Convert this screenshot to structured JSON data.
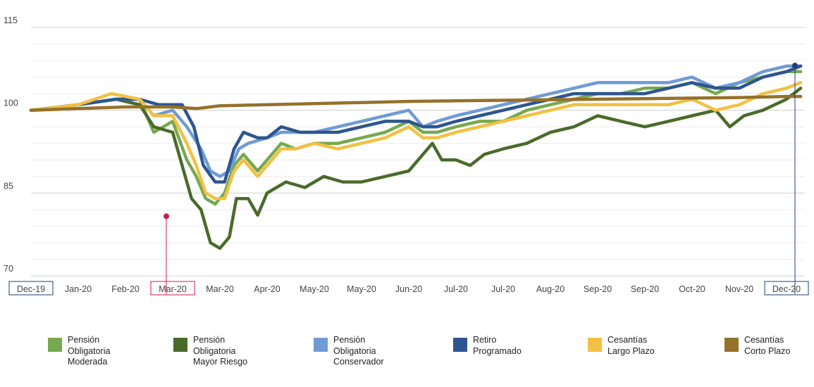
{
  "chart_data": {
    "type": "line",
    "ylim": [
      70,
      115
    ],
    "yticks": [
      70,
      85,
      100,
      115
    ],
    "x_labels": [
      "Dec-19",
      "Jan-20",
      "Feb-20",
      "Mar-20",
      "Mar-20",
      "Apr-20",
      "May-20",
      "May-20",
      "Jun-20",
      "Jul-20",
      "Jul-20",
      "Aug-20",
      "Sep-20",
      "Sep-20",
      "Oct-20",
      "Nov-20",
      "Dec-20"
    ],
    "highlighted_labels": [
      {
        "index": 0,
        "color": "#1f3d7a"
      },
      {
        "index": 3,
        "color": "#d11a4a"
      },
      {
        "index": 16,
        "color": "#1f3d7a"
      }
    ],
    "markers": [
      {
        "label_index": 3,
        "y": 80.8,
        "color": "#d11a4a"
      },
      {
        "label_index": 16,
        "y": 108.1,
        "color": "#1f3d7a"
      }
    ],
    "grid": true,
    "legend_position": "bottom",
    "series": [
      {
        "name": "Pensión\nObligatoria\nModerada",
        "color": "#76a94f",
        "points": [
          [
            0,
            100
          ],
          [
            1,
            101
          ],
          [
            1.8,
            102
          ],
          [
            2.3,
            102
          ],
          [
            2.6,
            96
          ],
          [
            3,
            98
          ],
          [
            3.3,
            91
          ],
          [
            3.5,
            88
          ],
          [
            3.7,
            84
          ],
          [
            3.9,
            83
          ],
          [
            4.1,
            85
          ],
          [
            4.3,
            90
          ],
          [
            4.5,
            92
          ],
          [
            4.8,
            89
          ],
          [
            5,
            91
          ],
          [
            5.3,
            94
          ],
          [
            5.6,
            93
          ],
          [
            6,
            94
          ],
          [
            6.5,
            94
          ],
          [
            7,
            95
          ],
          [
            7.5,
            96
          ],
          [
            8,
            98
          ],
          [
            8.3,
            96
          ],
          [
            8.6,
            96
          ],
          [
            9,
            97
          ],
          [
            9.5,
            98
          ],
          [
            10,
            98
          ],
          [
            10.5,
            100
          ],
          [
            11,
            101
          ],
          [
            11.5,
            102
          ],
          [
            12,
            103
          ],
          [
            12.5,
            103
          ],
          [
            13,
            104
          ],
          [
            13.5,
            104
          ],
          [
            14,
            105
          ],
          [
            14.5,
            103
          ],
          [
            15,
            105
          ],
          [
            15.5,
            106
          ],
          [
            16,
            107
          ],
          [
            16.3,
            107
          ]
        ]
      },
      {
        "name": "Pensión\nObligatoria\nMayor Riesgo",
        "color": "#4a6b2a",
        "points": [
          [
            0,
            100
          ],
          [
            1,
            101
          ],
          [
            1.8,
            102
          ],
          [
            2.3,
            101
          ],
          [
            2.6,
            97
          ],
          [
            3,
            96
          ],
          [
            3.2,
            90
          ],
          [
            3.4,
            84
          ],
          [
            3.6,
            82
          ],
          [
            3.8,
            76
          ],
          [
            4,
            75
          ],
          [
            4.2,
            77
          ],
          [
            4.35,
            84
          ],
          [
            4.6,
            84
          ],
          [
            4.8,
            81
          ],
          [
            5,
            85
          ],
          [
            5.4,
            87
          ],
          [
            5.8,
            86
          ],
          [
            6.2,
            88
          ],
          [
            6.6,
            87
          ],
          [
            7,
            87
          ],
          [
            7.5,
            88
          ],
          [
            8,
            89
          ],
          [
            8.3,
            92
          ],
          [
            8.5,
            94
          ],
          [
            8.7,
            91
          ],
          [
            9,
            91
          ],
          [
            9.3,
            90
          ],
          [
            9.6,
            92
          ],
          [
            10,
            93
          ],
          [
            10.5,
            94
          ],
          [
            11,
            96
          ],
          [
            11.5,
            97
          ],
          [
            12,
            99
          ],
          [
            12.5,
            98
          ],
          [
            13,
            97
          ],
          [
            13.5,
            98
          ],
          [
            14,
            99
          ],
          [
            14.5,
            100
          ],
          [
            14.8,
            97
          ],
          [
            15.1,
            99
          ],
          [
            15.5,
            100
          ],
          [
            16,
            102
          ],
          [
            16.3,
            104
          ]
        ]
      },
      {
        "name": "Pensión\nObligatoria\nConservador",
        "color": "#6f9bd5",
        "points": [
          [
            0,
            100
          ],
          [
            1,
            101
          ],
          [
            1.8,
            102
          ],
          [
            2.3,
            102
          ],
          [
            2.6,
            99
          ],
          [
            3,
            100
          ],
          [
            3.3,
            97
          ],
          [
            3.6,
            93
          ],
          [
            3.8,
            89
          ],
          [
            4,
            88
          ],
          [
            4.2,
            89
          ],
          [
            4.4,
            93
          ],
          [
            4.6,
            94
          ],
          [
            5,
            95
          ],
          [
            5.3,
            96
          ],
          [
            5.7,
            96
          ],
          [
            6,
            96
          ],
          [
            6.5,
            97
          ],
          [
            7,
            98
          ],
          [
            7.5,
            99
          ],
          [
            8,
            100
          ],
          [
            8.3,
            97
          ],
          [
            8.6,
            98
          ],
          [
            9,
            99
          ],
          [
            9.5,
            100
          ],
          [
            10,
            101
          ],
          [
            10.5,
            102
          ],
          [
            11,
            103
          ],
          [
            11.5,
            104
          ],
          [
            12,
            105
          ],
          [
            12.5,
            105
          ],
          [
            13,
            105
          ],
          [
            13.5,
            105
          ],
          [
            14,
            106
          ],
          [
            14.5,
            104
          ],
          [
            15,
            105
          ],
          [
            15.5,
            107
          ],
          [
            16,
            108
          ],
          [
            16.3,
            108
          ]
        ]
      },
      {
        "name": "Retiro\nProgramado",
        "color": "#2e558f",
        "points": [
          [
            0,
            100
          ],
          [
            1,
            101
          ],
          [
            1.8,
            102
          ],
          [
            2.3,
            102
          ],
          [
            2.7,
            101
          ],
          [
            3,
            101
          ],
          [
            3.2,
            101
          ],
          [
            3.45,
            97
          ],
          [
            3.65,
            90
          ],
          [
            3.9,
            87
          ],
          [
            4.1,
            87
          ],
          [
            4.3,
            93
          ],
          [
            4.5,
            96
          ],
          [
            4.8,
            95
          ],
          [
            5,
            95
          ],
          [
            5.3,
            97
          ],
          [
            5.7,
            96
          ],
          [
            6,
            96
          ],
          [
            6.5,
            96
          ],
          [
            7,
            97
          ],
          [
            7.5,
            98
          ],
          [
            8,
            98
          ],
          [
            8.3,
            97
          ],
          [
            8.6,
            97
          ],
          [
            9,
            98
          ],
          [
            9.5,
            99
          ],
          [
            10,
            100
          ],
          [
            10.5,
            101
          ],
          [
            11,
            102
          ],
          [
            11.5,
            103
          ],
          [
            12,
            103
          ],
          [
            12.5,
            103
          ],
          [
            13,
            103
          ],
          [
            13.5,
            104
          ],
          [
            14,
            105
          ],
          [
            14.5,
            104
          ],
          [
            15,
            104
          ],
          [
            15.5,
            106
          ],
          [
            16,
            107
          ],
          [
            16.3,
            108
          ]
        ]
      },
      {
        "name": "Cesantías\nLargo Plazo",
        "color": "#f2c043",
        "points": [
          [
            0,
            100
          ],
          [
            1,
            101
          ],
          [
            1.7,
            103
          ],
          [
            2.3,
            102
          ],
          [
            2.6,
            99
          ],
          [
            3,
            99
          ],
          [
            3.3,
            94
          ],
          [
            3.5,
            90
          ],
          [
            3.7,
            85
          ],
          [
            3.9,
            84
          ],
          [
            4.1,
            84
          ],
          [
            4.3,
            89
          ],
          [
            4.5,
            91
          ],
          [
            4.8,
            88
          ],
          [
            5,
            90
          ],
          [
            5.3,
            93
          ],
          [
            5.6,
            93
          ],
          [
            6,
            94
          ],
          [
            6.5,
            93
          ],
          [
            7,
            94
          ],
          [
            7.5,
            95
          ],
          [
            8,
            97
          ],
          [
            8.3,
            95
          ],
          [
            8.6,
            95
          ],
          [
            9,
            96
          ],
          [
            9.5,
            97
          ],
          [
            10,
            98
          ],
          [
            10.5,
            99
          ],
          [
            11,
            100
          ],
          [
            11.5,
            101
          ],
          [
            12,
            101
          ],
          [
            12.5,
            101
          ],
          [
            13,
            101
          ],
          [
            13.5,
            101
          ],
          [
            14,
            102
          ],
          [
            14.5,
            100
          ],
          [
            15,
            101
          ],
          [
            15.5,
            103
          ],
          [
            16,
            104
          ],
          [
            16.3,
            105
          ]
        ]
      },
      {
        "name": "Cesantías\nCorto Plazo",
        "color": "#95712a",
        "points": [
          [
            0,
            100
          ],
          [
            1,
            100.3
          ],
          [
            2,
            100.6
          ],
          [
            3,
            100.6
          ],
          [
            3.5,
            100.3
          ],
          [
            4,
            100.8
          ],
          [
            5,
            101.0
          ],
          [
            6,
            101.2
          ],
          [
            7,
            101.4
          ],
          [
            8,
            101.6
          ],
          [
            9,
            101.7
          ],
          [
            10,
            101.8
          ],
          [
            11,
            101.9
          ],
          [
            12,
            102.0
          ],
          [
            13,
            102.1
          ],
          [
            14,
            102.2
          ],
          [
            15,
            102.3
          ],
          [
            16,
            102.5
          ],
          [
            16.3,
            102.5
          ]
        ]
      }
    ]
  }
}
